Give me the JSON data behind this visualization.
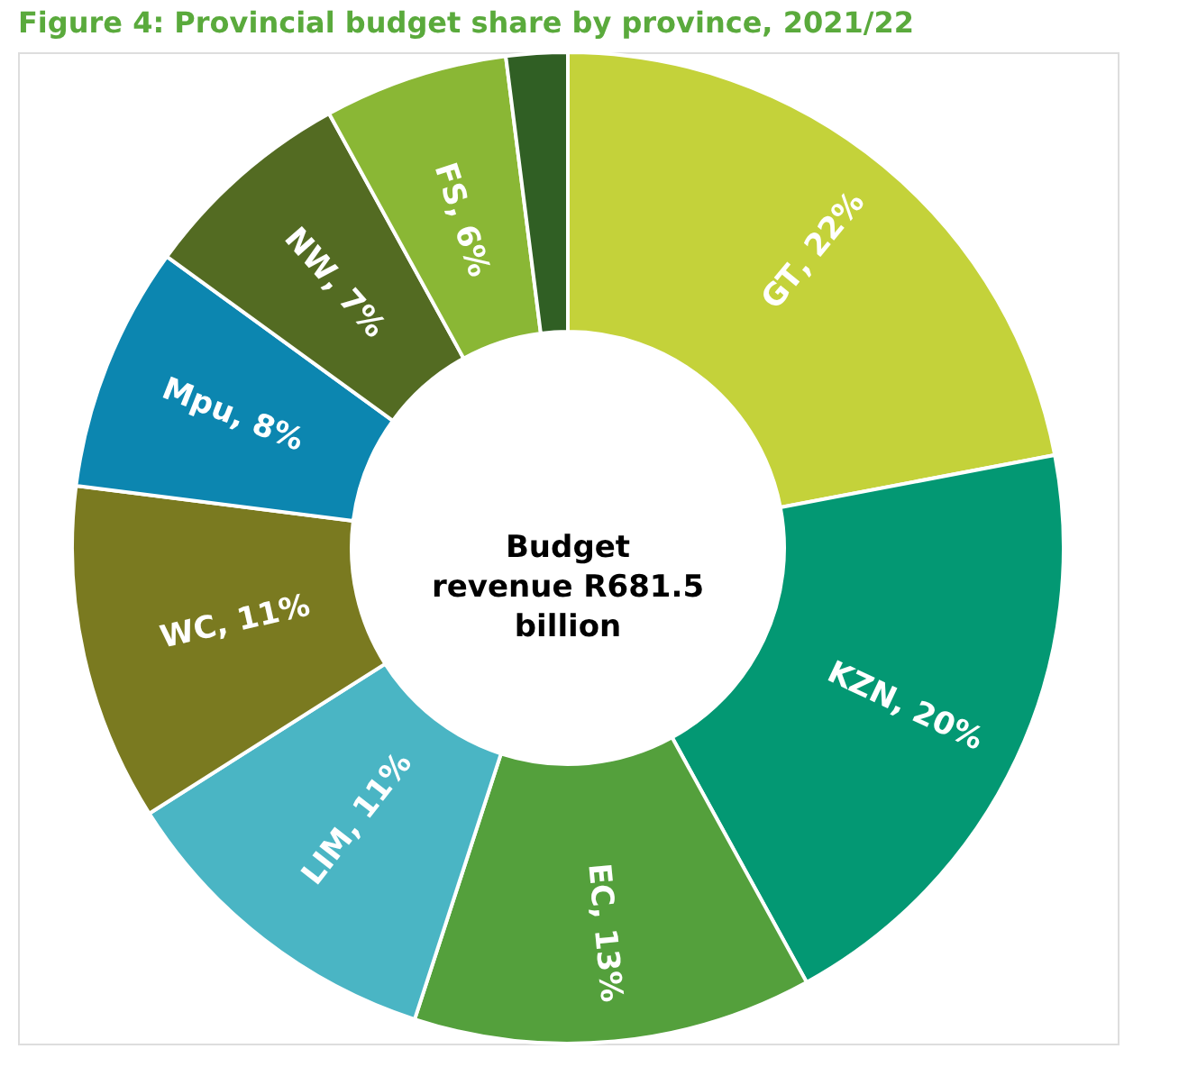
{
  "chart_data": {
    "type": "donut",
    "title": "Figure 4: Provincial budget share by province, 2021/22",
    "categories": [
      "GT",
      "KZN",
      "EC",
      "LIM",
      "WC",
      "Mpu",
      "NW",
      "FS",
      null
    ],
    "values": [
      22,
      20,
      13,
      11,
      11,
      8,
      7,
      6,
      2
    ],
    "colors": [
      "#c4d23a",
      "#039873",
      "#54a03c",
      "#4ab5c4",
      "#7a7a20",
      "#0c86b0",
      "#536b22",
      "#8ab735",
      "#305f24"
    ],
    "value_labels": [
      ", 22%",
      ", 20%",
      ", 13%",
      ", 11%",
      ", 11%",
      ", 8%",
      ", 7%",
      ", 6%",
      null
    ],
    "annotations": [
      "Budget\nrevenue R681.5\nbillion"
    ],
    "legend": false
  }
}
